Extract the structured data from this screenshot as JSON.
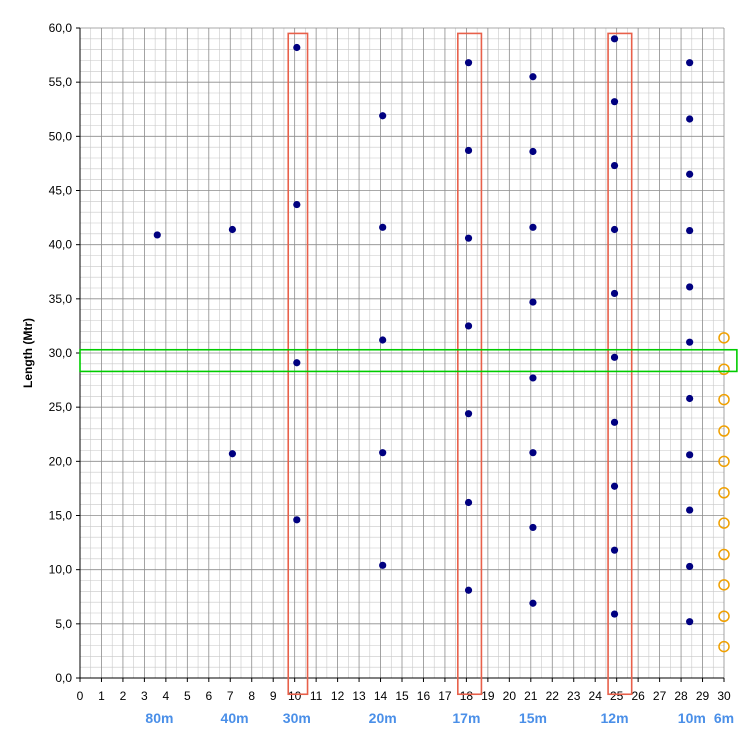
{
  "chart_data": {
    "type": "scatter",
    "title": "",
    "xlabel": "",
    "ylabel": "Length (Mtr)",
    "xlim": [
      0,
      30
    ],
    "ylim": [
      0,
      60
    ],
    "x_ticks": [
      "0",
      "1",
      "2",
      "3",
      "4",
      "5",
      "6",
      "7",
      "8",
      "9",
      "10",
      "11",
      "12",
      "13",
      "14",
      "15",
      "16",
      "17",
      "18",
      "19",
      "20",
      "21",
      "22",
      "23",
      "24",
      "25",
      "26",
      "27",
      "28",
      "29",
      "30"
    ],
    "y_ticks": [
      "0,0",
      "5,0",
      "10,0",
      "15,0",
      "20,0",
      "25,0",
      "30,0",
      "35,0",
      "40,0",
      "45,0",
      "50,0",
      "55,0",
      "60,0"
    ],
    "grid": true,
    "band_labels": [
      {
        "label": "80m",
        "x": 3.7
      },
      {
        "label": "40m",
        "x": 7.2
      },
      {
        "label": "30m",
        "x": 10.1
      },
      {
        "label": "20m",
        "x": 14.1
      },
      {
        "label": "17m",
        "x": 18.0
      },
      {
        "label": "15m",
        "x": 21.1
      },
      {
        "label": "12m",
        "x": 24.9
      },
      {
        "label": "10m",
        "x": 28.5
      },
      {
        "label": "6m",
        "x": 30.0
      }
    ],
    "series": [
      {
        "marker": "filled",
        "color": "#000080",
        "points": [
          [
            3.6,
            40.9
          ],
          [
            7.1,
            41.4
          ],
          [
            7.1,
            20.7
          ],
          [
            10.1,
            58.2
          ],
          [
            10.1,
            43.7
          ],
          [
            10.1,
            29.1
          ],
          [
            10.1,
            14.6
          ],
          [
            14.1,
            51.9
          ],
          [
            14.1,
            41.6
          ],
          [
            14.1,
            31.2
          ],
          [
            14.1,
            20.8
          ],
          [
            14.1,
            10.4
          ],
          [
            18.1,
            56.8
          ],
          [
            18.1,
            48.7
          ],
          [
            18.1,
            40.6
          ],
          [
            18.1,
            32.5
          ],
          [
            18.1,
            24.4
          ],
          [
            18.1,
            16.2
          ],
          [
            18.1,
            8.1
          ],
          [
            21.1,
            55.5
          ],
          [
            21.1,
            48.6
          ],
          [
            21.1,
            41.6
          ],
          [
            21.1,
            34.7
          ],
          [
            21.1,
            27.7
          ],
          [
            21.1,
            20.8
          ],
          [
            21.1,
            13.9
          ],
          [
            21.1,
            6.9
          ],
          [
            24.9,
            59.0
          ],
          [
            24.9,
            53.2
          ],
          [
            24.9,
            47.3
          ],
          [
            24.9,
            41.4
          ],
          [
            24.9,
            35.5
          ],
          [
            24.9,
            29.6
          ],
          [
            24.9,
            23.6
          ],
          [
            24.9,
            17.7
          ],
          [
            24.9,
            11.8
          ],
          [
            24.9,
            5.9
          ],
          [
            28.4,
            56.8
          ],
          [
            28.4,
            51.6
          ],
          [
            28.4,
            46.5
          ],
          [
            28.4,
            41.3
          ],
          [
            28.4,
            36.1
          ],
          [
            28.4,
            31.0
          ],
          [
            28.4,
            25.8
          ],
          [
            28.4,
            20.6
          ],
          [
            28.4,
            15.5
          ],
          [
            28.4,
            10.3
          ],
          [
            28.4,
            5.2
          ]
        ]
      },
      {
        "marker": "hollow",
        "color": "#f0a000",
        "points": [
          [
            30.0,
            31.4
          ],
          [
            30.0,
            28.5
          ],
          [
            30.0,
            25.7
          ],
          [
            30.0,
            22.8
          ],
          [
            30.0,
            20.0
          ],
          [
            30.0,
            17.1
          ],
          [
            30.0,
            14.3
          ],
          [
            30.0,
            11.4
          ],
          [
            30.0,
            8.6
          ],
          [
            30.0,
            5.7
          ],
          [
            30.0,
            2.9
          ]
        ]
      }
    ],
    "highlights": [
      {
        "orientation": "vertical",
        "x": [
          9.7,
          10.6
        ],
        "y": [
          -1.5,
          59.5
        ],
        "color": "#e8604a"
      },
      {
        "orientation": "vertical",
        "x": [
          17.6,
          18.7
        ],
        "y": [
          -1.5,
          59.5
        ],
        "color": "#e8604a"
      },
      {
        "orientation": "vertical",
        "x": [
          24.6,
          25.7
        ],
        "y": [
          -1.5,
          59.5
        ],
        "color": "#e8604a"
      },
      {
        "orientation": "horizontal",
        "x": [
          0,
          30.6
        ],
        "y": [
          28.3,
          30.3
        ],
        "color": "#00cc00"
      }
    ]
  }
}
